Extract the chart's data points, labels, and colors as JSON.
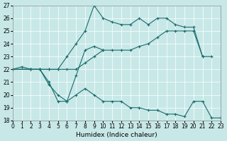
{
  "xlabel": "Humidex (Indice chaleur)",
  "bg_color": "#c8e8e8",
  "grid_color": "#ffffff",
  "line_color": "#1a6b6b",
  "xlim": [
    0,
    23
  ],
  "ylim": [
    18,
    27
  ],
  "xticks": [
    0,
    1,
    2,
    3,
    4,
    5,
    6,
    7,
    8,
    9,
    10,
    11,
    12,
    13,
    14,
    15,
    16,
    17,
    18,
    19,
    20,
    21,
    22,
    23
  ],
  "yticks": [
    18,
    19,
    20,
    21,
    22,
    23,
    24,
    25,
    26,
    27
  ],
  "lineA_x": [
    0,
    2,
    3,
    4,
    5,
    6,
    7,
    8,
    9,
    10,
    11,
    12,
    13,
    14,
    15,
    16,
    17,
    18,
    19,
    20,
    21,
    22
  ],
  "lineA_y": [
    22,
    22,
    22,
    22,
    22,
    23,
    24,
    25,
    27,
    26,
    25.7,
    25.5,
    25.5,
    26,
    25.5,
    26,
    26,
    25.5,
    25.3,
    25.3,
    23,
    23
  ],
  "lineB_x": [
    0,
    2,
    3,
    4,
    5,
    6,
    7,
    8,
    9,
    10,
    11,
    12,
    13,
    14,
    15,
    16,
    17,
    18,
    19,
    20,
    21
  ],
  "lineB_y": [
    22,
    22,
    22,
    22,
    22,
    22,
    22,
    22.5,
    23,
    23.5,
    23.5,
    23.5,
    23.5,
    23.8,
    24,
    24.5,
    25,
    25,
    25,
    25,
    23
  ],
  "lineC_x": [
    0,
    1,
    2,
    3,
    4,
    5,
    6,
    7,
    8,
    9,
    10
  ],
  "lineC_y": [
    22,
    22.2,
    22,
    22,
    20.8,
    20,
    19.5,
    21.5,
    23.5,
    23.8,
    23.5
  ],
  "lineD_x": [
    0,
    2,
    3,
    4,
    5,
    6,
    7,
    8,
    9,
    10,
    11,
    12,
    13,
    14,
    15,
    16,
    17,
    18,
    19,
    20,
    21,
    22,
    23
  ],
  "lineD_y": [
    22,
    22,
    22,
    21,
    19.5,
    19.5,
    20,
    20.5,
    20,
    19.5,
    19.5,
    19.5,
    19,
    19,
    18.8,
    18.8,
    18.5,
    18.5,
    18.3,
    19.5,
    19.5,
    18.2,
    18.2
  ]
}
